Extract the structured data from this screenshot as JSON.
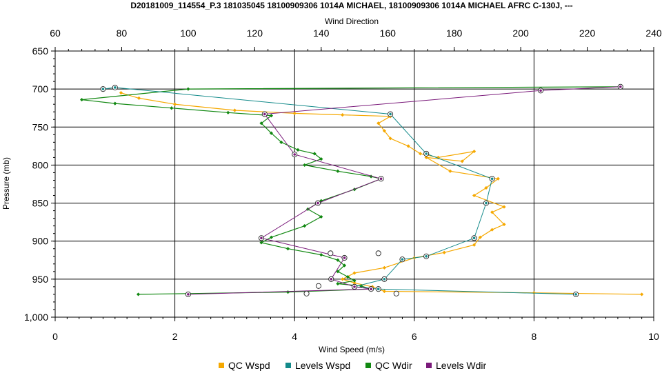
{
  "chart_data": {
    "type": "line",
    "title": "D20181009_114554_P.3 181035045 18100909306 1014A MICHAEL, 18100909306 1014A MICHAEL AFRC C-130J, ---",
    "xlabel": "Wind Speed (m/s)",
    "x2label": "Wind Direction",
    "ylabel": "Pressure (mb)",
    "xlim": [
      0,
      10
    ],
    "x2lim": [
      60,
      240
    ],
    "ylim": [
      650,
      1000
    ],
    "y_inverted": true,
    "xticks": [
      "0",
      "2",
      "4",
      "6",
      "8",
      "10"
    ],
    "x2ticks": [
      "60",
      "80",
      "100",
      "120",
      "140",
      "160",
      "180",
      "200",
      "220",
      "240"
    ],
    "yticks": [
      "650",
      "700",
      "750",
      "800",
      "850",
      "900",
      "950",
      "1,000"
    ],
    "grid": true,
    "legend_position": "bottom",
    "colors": {
      "qc_wspd": "#f5a800",
      "levels_wspd": "#138a8a",
      "qc_wdir": "#118811",
      "levels_wdir": "#7a1a7a",
      "grid": "#000000"
    },
    "series": [
      {
        "name": "QC Wspd",
        "axis": "bottom",
        "x": [
          1.1,
          1.4,
          2.0,
          3.0,
          4.0,
          4.8,
          5.6,
          5.4,
          5.5,
          5.6,
          5.9,
          6.1,
          6.4,
          7.0,
          6.8,
          6.2,
          6.6,
          7.4,
          7.2,
          7.0,
          7.5,
          7.3,
          7.5,
          7.3,
          7.1,
          7.0,
          6.5,
          6.0,
          5.5,
          5.0,
          4.8,
          5.0,
          5.3,
          5.5,
          8.0,
          9.8
        ],
        "y": [
          705,
          712,
          720,
          728,
          732,
          734,
          736,
          745,
          755,
          765,
          775,
          785,
          790,
          782,
          795,
          790,
          808,
          818,
          830,
          840,
          855,
          862,
          878,
          885,
          895,
          905,
          915,
          922,
          935,
          942,
          950,
          955,
          960,
          966,
          968,
          970
        ]
      },
      {
        "name": "Levels Wspd",
        "axis": "bottom",
        "x": [
          0.8,
          1.0,
          5.6,
          6.2,
          7.3,
          7.2,
          7.0,
          6.2,
          5.8,
          5.5,
          5.0,
          5.4,
          8.7
        ],
        "y": [
          700,
          698,
          733,
          785,
          818,
          850,
          896,
          920,
          924,
          950,
          960,
          963,
          970
        ]
      },
      {
        "name": "QC Wdir",
        "axis": "top",
        "x": [
          230,
          100,
          68,
          78,
          95,
          112,
          125,
          122,
          125,
          128,
          133,
          138,
          140,
          135,
          145,
          155,
          158,
          150,
          140,
          136,
          140,
          135,
          125,
          122,
          130,
          140,
          145,
          147,
          145,
          148,
          150,
          145,
          152,
          155,
          130,
          100,
          85
        ],
        "y": [
          697,
          700,
          714,
          719,
          725,
          731,
          735,
          745,
          758,
          770,
          780,
          785,
          792,
          800,
          808,
          815,
          818,
          832,
          847,
          858,
          868,
          880,
          895,
          902,
          910,
          918,
          925,
          932,
          940,
          947,
          952,
          956,
          959,
          963,
          967,
          969,
          970
        ]
      },
      {
        "name": "Levels Wdir",
        "axis": "top",
        "x": [
          230,
          206,
          123,
          132,
          158,
          139,
          122,
          147,
          143,
          150,
          155,
          100
        ],
        "y": [
          697,
          702,
          733,
          786,
          818,
          850,
          896,
          922,
          950,
          960,
          963,
          970
        ]
      }
    ],
    "open_markers": [
      {
        "axis": "bottom",
        "x": [
          4.6,
          5.4,
          4.4,
          4.2,
          5.7
        ],
        "y": [
          916,
          916,
          959,
          969,
          969
        ]
      }
    ]
  }
}
